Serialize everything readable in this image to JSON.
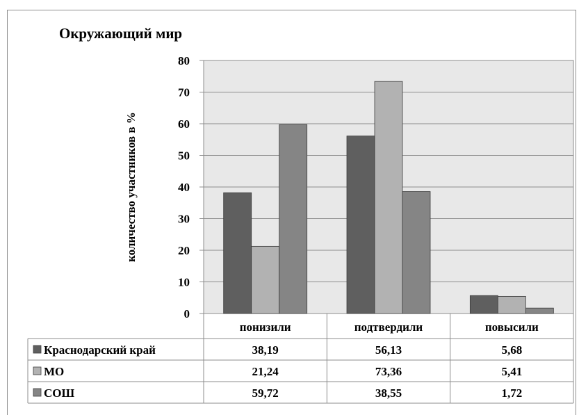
{
  "chart_data": {
    "type": "bar",
    "title": "Окружающий мир",
    "ylabel": "количество участников в %",
    "xlabel": "",
    "ylim": [
      0,
      80
    ],
    "yticks": [
      0,
      10,
      20,
      30,
      40,
      50,
      60,
      70,
      80
    ],
    "grid": true,
    "legend": "data-table",
    "categories": [
      "понизили",
      "подтвердили",
      "повысили"
    ],
    "series": [
      {
        "name": "Краснодарский край",
        "values": [
          38.19,
          56.13,
          5.68
        ],
        "labels": [
          "38,19",
          "56,13",
          "5,68"
        ],
        "color": "#5f5f5f"
      },
      {
        "name": "МО",
        "values": [
          21.24,
          73.36,
          5.41
        ],
        "labels": [
          "21,24",
          "73,36",
          "5,41"
        ],
        "color": "#b2b2b2"
      },
      {
        "name": "СОШ",
        "values": [
          59.72,
          38.55,
          1.72
        ],
        "labels": [
          "59,72",
          "38,55",
          "1,72"
        ],
        "color": "#858585"
      }
    ],
    "plot_background": "#e8e8e8"
  }
}
